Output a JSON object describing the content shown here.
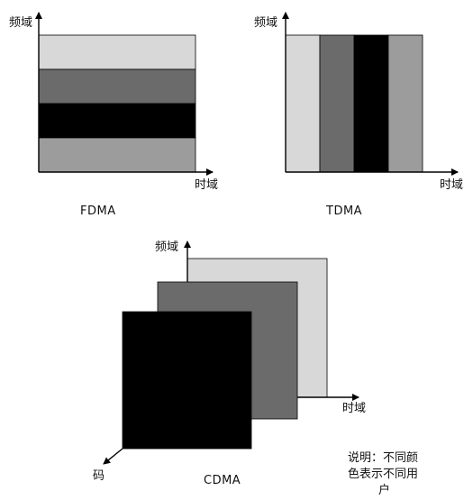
{
  "fdma": {
    "y_axis_label": "频域",
    "x_axis_label": "时域",
    "caption": "FDMA",
    "band_colors": [
      "#d8d8d8",
      "#6b6b6b",
      "#000000",
      "#9c9c9c"
    ]
  },
  "tdma": {
    "y_axis_label": "频域",
    "x_axis_label": "时域",
    "caption": "TDMA",
    "slot_colors": [
      "#d8d8d8",
      "#6b6b6b",
      "#000000",
      "#9c9c9c"
    ]
  },
  "cdma": {
    "y_axis_label": "频域",
    "x_axis_label": "时域",
    "z_axis_label": "码",
    "caption": "CDMA",
    "layer_colors": [
      "#d8d8d8",
      "#6b6b6b",
      "#000000"
    ]
  },
  "legend_note": {
    "line1": "说明：不同颜",
    "line2": "色表示不同用",
    "line3": "户"
  }
}
